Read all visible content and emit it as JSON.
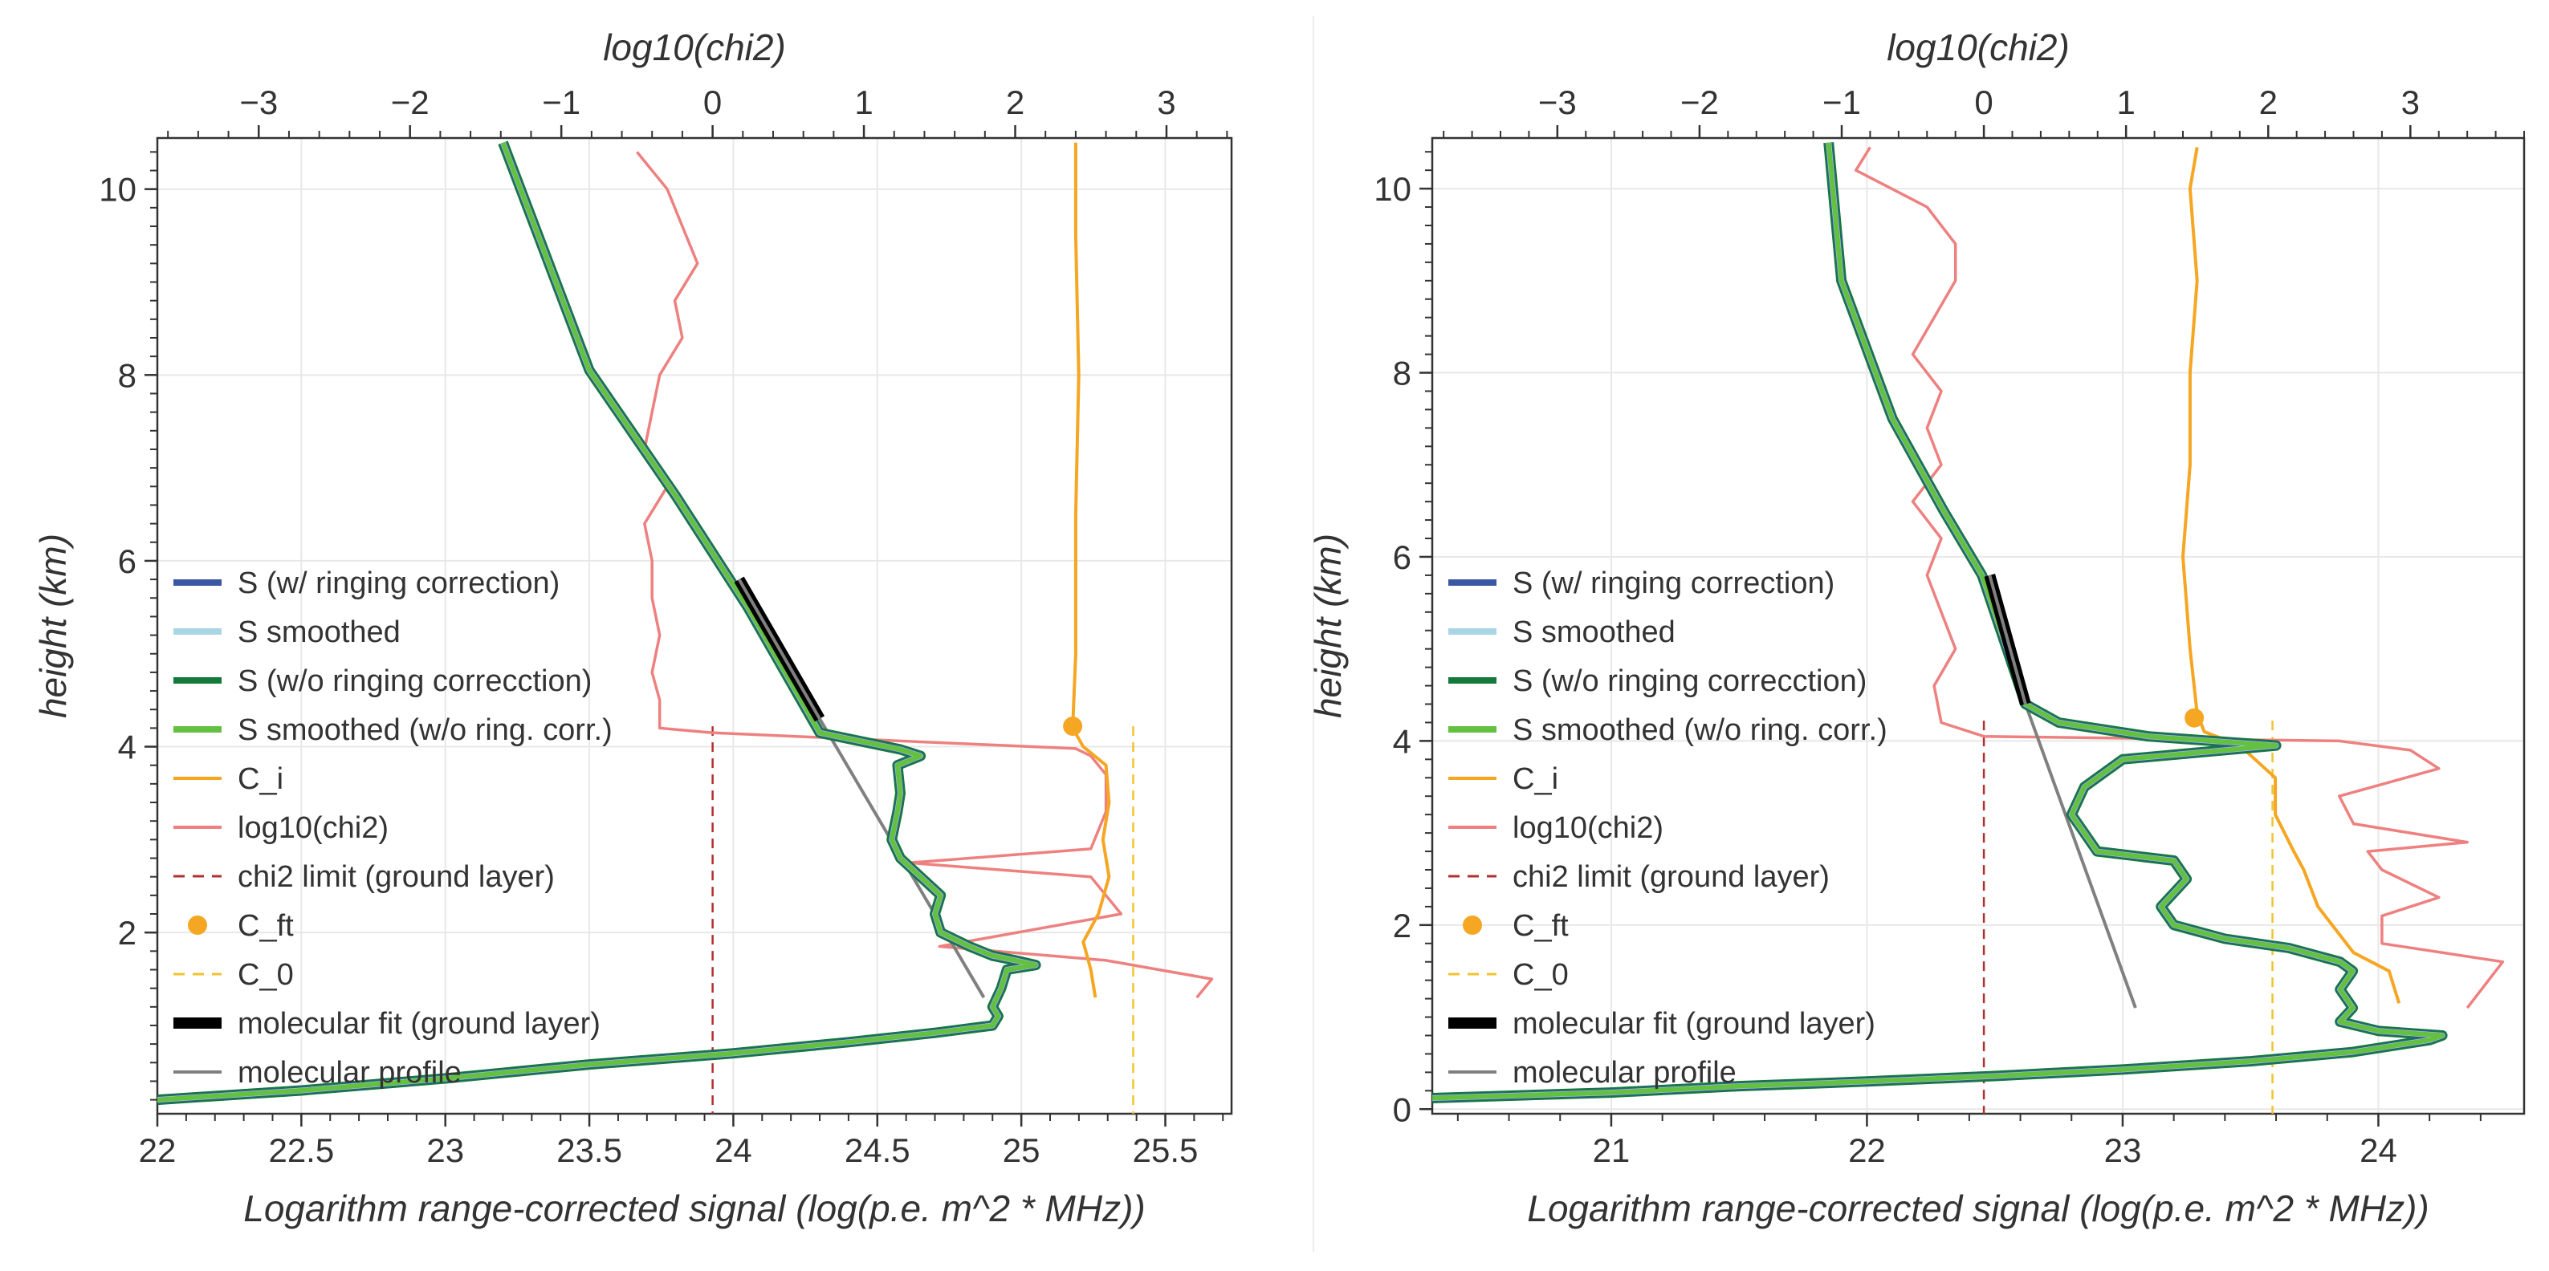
{
  "colors": {
    "s_ring": "#3b56a3",
    "s_smooth": "#a9d6e5",
    "s_noring": "#137a3c",
    "s_smooth_noring": "#64c040",
    "c_i": "#f5a623",
    "chi2": "#ee8080",
    "chi2_limit": "#b03030",
    "c_ft": "#f5a623",
    "c_0": "#f2c230",
    "mol_fit": "#000000",
    "mol_profile": "#808080",
    "grid": "#e8e8e8",
    "axis": "#333333"
  },
  "chart_data": [
    {
      "type": "line",
      "xlabel": "Logarithm range-corrected signal (log(p.e.  m^2 * MHz))",
      "x2label": "log10(chi2)",
      "ylabel": "height (km)",
      "xlim": [
        22.0,
        25.73
      ],
      "x2lim": [
        -3.67,
        3.43
      ],
      "ylim": [
        0.05,
        10.55
      ],
      "xticks": [
        22,
        22.5,
        23,
        23.5,
        24,
        24.5,
        25,
        25.5
      ],
      "xticklabels": [
        "22",
        "22.5",
        "23",
        "23.5",
        "24",
        "24.5",
        "25",
        "25.5"
      ],
      "x2ticks": [
        -3,
        -2,
        -1,
        0,
        1,
        2,
        3
      ],
      "x2ticklabels": [
        "−3",
        "−2",
        "−1",
        "0",
        "1",
        "2",
        "3"
      ],
      "yticks": [
        2,
        4,
        6,
        8,
        10
      ],
      "yticklabels": [
        "2",
        "4",
        "6",
        "8",
        "10"
      ],
      "legend": [
        "S (w/ ringing correction)",
        "S smoothed",
        "S (w/o ringing correcction)",
        "S smoothed (w/o ring. corr.)",
        "C_i",
        "log10(chi2)",
        "chi2 limit (ground layer)",
        "C_ft",
        "C_0",
        "molecular fit (ground layer)",
        "molecular profile"
      ],
      "series": {
        "signal": [
          [
            22.0,
            0.2
          ],
          [
            22.5,
            0.3
          ],
          [
            23.0,
            0.43
          ],
          [
            23.5,
            0.58
          ],
          [
            24.0,
            0.7
          ],
          [
            24.4,
            0.82
          ],
          [
            24.7,
            0.92
          ],
          [
            24.9,
            1.0
          ],
          [
            24.92,
            1.1
          ],
          [
            24.9,
            1.2
          ],
          [
            24.93,
            1.4
          ],
          [
            24.95,
            1.6
          ],
          [
            25.05,
            1.65
          ],
          [
            24.98,
            1.7
          ],
          [
            24.9,
            1.75
          ],
          [
            24.82,
            1.85
          ],
          [
            24.72,
            2.0
          ],
          [
            24.7,
            2.2
          ],
          [
            24.72,
            2.4
          ],
          [
            24.65,
            2.6
          ],
          [
            24.58,
            2.8
          ],
          [
            24.55,
            3.0
          ],
          [
            24.57,
            3.3
          ],
          [
            24.58,
            3.5
          ],
          [
            24.57,
            3.8
          ],
          [
            24.65,
            3.9
          ],
          [
            24.58,
            3.97
          ],
          [
            24.3,
            4.15
          ],
          [
            24.05,
            5.5
          ],
          [
            23.8,
            6.7
          ],
          [
            23.5,
            8.05
          ],
          [
            23.2,
            10.5
          ]
        ],
        "mol_profile": [
          [
            24.87,
            1.3
          ],
          [
            24.3,
            4.3
          ],
          [
            24.02,
            5.8
          ]
        ],
        "mol_fit": [
          [
            24.3,
            4.3
          ],
          [
            24.02,
            5.8
          ]
        ],
        "chi2": [
          [
            3.2,
            1.3
          ],
          [
            3.3,
            1.5
          ],
          [
            2.6,
            1.7
          ],
          [
            1.5,
            1.85
          ],
          [
            2.7,
            2.2
          ],
          [
            2.5,
            2.6
          ],
          [
            1.3,
            2.75
          ],
          [
            2.5,
            2.9
          ],
          [
            2.6,
            3.3
          ],
          [
            2.6,
            3.7
          ],
          [
            2.5,
            3.9
          ],
          [
            2.4,
            3.98
          ],
          [
            0.0,
            4.15
          ],
          [
            -0.35,
            4.2
          ],
          [
            -0.35,
            4.5
          ],
          [
            -0.4,
            4.8
          ],
          [
            -0.35,
            5.2
          ],
          [
            -0.4,
            5.6
          ],
          [
            -0.4,
            6.0
          ],
          [
            -0.45,
            6.4
          ],
          [
            -0.3,
            6.8
          ],
          [
            -0.45,
            7.2
          ],
          [
            -0.4,
            7.6
          ],
          [
            -0.35,
            8.0
          ],
          [
            -0.2,
            8.4
          ],
          [
            -0.25,
            8.8
          ],
          [
            -0.1,
            9.2
          ],
          [
            -0.2,
            9.6
          ],
          [
            -0.3,
            10.0
          ],
          [
            -0.5,
            10.4
          ]
        ],
        "c_i": [
          [
            2.53,
            1.3
          ],
          [
            2.5,
            1.6
          ],
          [
            2.45,
            1.9
          ],
          [
            2.55,
            2.2
          ],
          [
            2.62,
            2.6
          ],
          [
            2.58,
            3.0
          ],
          [
            2.62,
            3.4
          ],
          [
            2.6,
            3.8
          ],
          [
            2.45,
            4.0
          ],
          [
            2.38,
            4.2
          ],
          [
            2.4,
            5.0
          ],
          [
            2.4,
            6.5
          ],
          [
            2.42,
            8.0
          ],
          [
            2.4,
            9.5
          ],
          [
            2.4,
            10.5
          ]
        ],
        "c_ft": [
          2.38,
          4.22
        ],
        "chi2_limit_x": 0.0,
        "c_0_x": 2.78,
        "limit_ymax": 4.22
      }
    },
    {
      "type": "line",
      "xlabel": "Logarithm range-corrected signal (log(p.e.  m^2 * MHz))",
      "x2label": "log10(chi2)",
      "ylabel": "height (km)",
      "xlim": [
        20.3,
        24.57
      ],
      "x2lim": [
        -3.88,
        3.8
      ],
      "ylim": [
        -0.05,
        10.55
      ],
      "xticks": [
        21,
        22,
        23,
        24
      ],
      "xticklabels": [
        "21",
        "22",
        "23",
        "24"
      ],
      "x2ticks": [
        -3,
        -2,
        -1,
        0,
        1,
        2,
        3
      ],
      "x2ticklabels": [
        "−3",
        "−2",
        "−1",
        "0",
        "1",
        "2",
        "3"
      ],
      "yticks": [
        0,
        2,
        4,
        6,
        8,
        10
      ],
      "yticklabels": [
        "0",
        "2",
        "4",
        "6",
        "8",
        "10"
      ],
      "legend": [
        "S (w/ ringing correction)",
        "S smoothed",
        "S (w/o ringing correcction)",
        "S smoothed (w/o ring. corr.)",
        "C_i",
        "log10(chi2)",
        "chi2 limit (ground layer)",
        "C_ft",
        "C_0",
        "molecular fit (ground layer)",
        "molecular profile"
      ],
      "series": {
        "signal": [
          [
            20.3,
            0.12
          ],
          [
            21.0,
            0.18
          ],
          [
            21.5,
            0.25
          ],
          [
            22.0,
            0.3
          ],
          [
            22.5,
            0.36
          ],
          [
            23.0,
            0.43
          ],
          [
            23.5,
            0.52
          ],
          [
            23.9,
            0.62
          ],
          [
            24.2,
            0.75
          ],
          [
            24.25,
            0.8
          ],
          [
            24.0,
            0.85
          ],
          [
            23.85,
            0.95
          ],
          [
            23.9,
            1.1
          ],
          [
            23.85,
            1.3
          ],
          [
            23.9,
            1.5
          ],
          [
            23.85,
            1.6
          ],
          [
            23.65,
            1.75
          ],
          [
            23.4,
            1.85
          ],
          [
            23.2,
            2.0
          ],
          [
            23.15,
            2.2
          ],
          [
            23.25,
            2.5
          ],
          [
            23.2,
            2.7
          ],
          [
            22.9,
            2.8
          ],
          [
            22.85,
            3.0
          ],
          [
            22.8,
            3.2
          ],
          [
            22.85,
            3.5
          ],
          [
            23.0,
            3.8
          ],
          [
            23.6,
            3.95
          ],
          [
            23.1,
            4.05
          ],
          [
            22.75,
            4.2
          ],
          [
            22.62,
            4.4
          ],
          [
            22.45,
            5.8
          ],
          [
            22.3,
            6.5
          ],
          [
            22.1,
            7.5
          ],
          [
            21.9,
            9.0
          ],
          [
            21.85,
            10.5
          ]
        ],
        "mol_profile": [
          [
            23.05,
            1.1
          ],
          [
            22.62,
            4.4
          ],
          [
            22.48,
            5.8
          ]
        ],
        "mol_fit": [
          [
            22.62,
            4.4
          ],
          [
            22.48,
            5.8
          ]
        ],
        "chi2": [
          [
            3.4,
            1.1
          ],
          [
            3.65,
            1.6
          ],
          [
            2.8,
            1.8
          ],
          [
            2.8,
            2.1
          ],
          [
            3.2,
            2.3
          ],
          [
            2.8,
            2.6
          ],
          [
            2.7,
            2.8
          ],
          [
            3.4,
            2.9
          ],
          [
            2.6,
            3.1
          ],
          [
            2.5,
            3.4
          ],
          [
            3.2,
            3.7
          ],
          [
            3.0,
            3.9
          ],
          [
            2.5,
            4.0
          ],
          [
            0.0,
            4.05
          ],
          [
            -0.3,
            4.2
          ],
          [
            -0.35,
            4.6
          ],
          [
            -0.2,
            5.0
          ],
          [
            -0.3,
            5.4
          ],
          [
            -0.4,
            5.8
          ],
          [
            -0.3,
            6.2
          ],
          [
            -0.5,
            6.6
          ],
          [
            -0.3,
            7.0
          ],
          [
            -0.4,
            7.4
          ],
          [
            -0.3,
            7.8
          ],
          [
            -0.5,
            8.2
          ],
          [
            -0.35,
            8.6
          ],
          [
            -0.2,
            9.0
          ],
          [
            -0.2,
            9.4
          ],
          [
            -0.4,
            9.8
          ],
          [
            -0.9,
            10.2
          ],
          [
            -0.8,
            10.45
          ]
        ],
        "c_i": [
          [
            2.92,
            1.15
          ],
          [
            2.85,
            1.5
          ],
          [
            2.6,
            1.7
          ],
          [
            2.35,
            2.2
          ],
          [
            2.25,
            2.6
          ],
          [
            2.18,
            2.8
          ],
          [
            2.05,
            3.2
          ],
          [
            2.05,
            3.6
          ],
          [
            1.8,
            3.95
          ],
          [
            1.55,
            4.1
          ],
          [
            1.5,
            4.3
          ],
          [
            1.45,
            5.0
          ],
          [
            1.4,
            6.0
          ],
          [
            1.45,
            7.0
          ],
          [
            1.45,
            8.0
          ],
          [
            1.5,
            9.0
          ],
          [
            1.45,
            10.0
          ],
          [
            1.5,
            10.45
          ]
        ],
        "c_ft": [
          1.48,
          4.25
        ],
        "chi2_limit_x": 0.0,
        "c_0_x": 2.03,
        "limit_ymax": 4.22
      }
    }
  ]
}
